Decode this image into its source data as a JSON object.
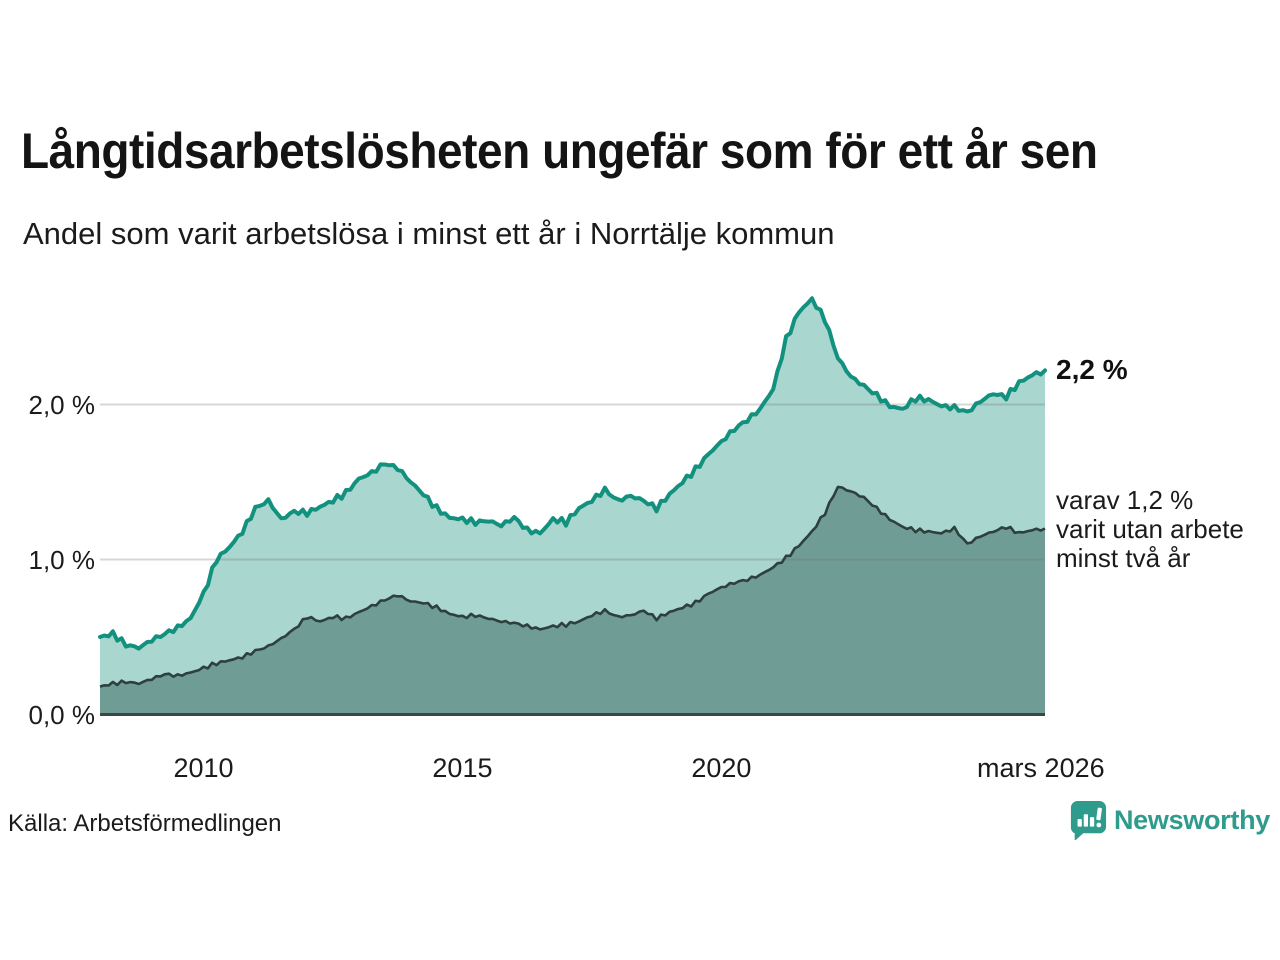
{
  "header": {
    "title": "Långtidsarbetslösheten ungefär som för ett år sen",
    "subtitle": "Andel som varit arbetslösa i minst ett år i Norrtälje kommun"
  },
  "footer": {
    "source": "Källa: Arbetsförmedlingen",
    "logo_text": "Newsworthy"
  },
  "colors": {
    "series1_line": "#12917f",
    "series1_fill": "#a9d6ce",
    "series2_line": "#2e403d",
    "series2_fill": "#6f9c95",
    "grid": "rgba(110,110,110,0.28)",
    "axis": "#3c4645",
    "logo_teal": "#2f9b8d",
    "text": "#1b1b1b"
  },
  "chart_data": {
    "type": "area",
    "title": "Långtidsarbetslösheten ungefär som för ett år sen",
    "subtitle": "Andel som varit arbetslösa i minst ett år i Norrtälje kommun",
    "xlim": [
      2008.0,
      2026.25
    ],
    "ylim": [
      0,
      2.9
    ],
    "grid": true,
    "x_start": 2008.0,
    "x_step": 0.25,
    "yticks": [
      {
        "v": 0,
        "label": "0,0 %"
      },
      {
        "v": 1,
        "label": "1,0 %"
      },
      {
        "v": 2,
        "label": "2,0 %"
      }
    ],
    "xticks": [
      {
        "x": 2010.0,
        "label": "2010"
      },
      {
        "x": 2015.0,
        "label": "2015"
      },
      {
        "x": 2020.0,
        "label": "2020"
      },
      {
        "x": 2026.17,
        "label": "mars 2026"
      }
    ],
    "annotations": {
      "end_value": "2,2 %",
      "sub_lines": [
        "varav 1,2 %",
        "varit utan arbete",
        "minst två år"
      ]
    },
    "series": [
      {
        "name": "Arbetslösa minst ett år",
        "end_value_pct": 2.2,
        "values": [
          0.5,
          0.52,
          0.45,
          0.43,
          0.48,
          0.52,
          0.56,
          0.62,
          0.78,
          1.0,
          1.08,
          1.18,
          1.33,
          1.38,
          1.26,
          1.31,
          1.3,
          1.34,
          1.38,
          1.43,
          1.52,
          1.56,
          1.62,
          1.59,
          1.5,
          1.42,
          1.33,
          1.27,
          1.26,
          1.24,
          1.25,
          1.22,
          1.27,
          1.19,
          1.17,
          1.26,
          1.24,
          1.33,
          1.38,
          1.45,
          1.38,
          1.41,
          1.38,
          1.33,
          1.42,
          1.5,
          1.58,
          1.68,
          1.76,
          1.84,
          1.9,
          1.97,
          2.1,
          2.42,
          2.6,
          2.68,
          2.55,
          2.3,
          2.18,
          2.12,
          2.06,
          1.99,
          1.97,
          2.04,
          2.03,
          1.99,
          1.98,
          1.95,
          2.02,
          2.07,
          2.05,
          2.14,
          2.19,
          2.22
        ]
      },
      {
        "name": "Varav utan arbete minst två år",
        "end_value_pct": 1.2,
        "values": [
          0.18,
          0.2,
          0.21,
          0.2,
          0.23,
          0.26,
          0.25,
          0.27,
          0.3,
          0.33,
          0.35,
          0.37,
          0.41,
          0.44,
          0.49,
          0.55,
          0.63,
          0.6,
          0.63,
          0.62,
          0.66,
          0.7,
          0.74,
          0.77,
          0.73,
          0.72,
          0.69,
          0.65,
          0.63,
          0.64,
          0.62,
          0.6,
          0.59,
          0.57,
          0.55,
          0.57,
          0.58,
          0.6,
          0.64,
          0.67,
          0.63,
          0.64,
          0.67,
          0.62,
          0.66,
          0.69,
          0.72,
          0.78,
          0.82,
          0.85,
          0.87,
          0.9,
          0.95,
          1.01,
          1.09,
          1.18,
          1.3,
          1.47,
          1.44,
          1.4,
          1.33,
          1.26,
          1.21,
          1.19,
          1.18,
          1.17,
          1.2,
          1.1,
          1.15,
          1.18,
          1.21,
          1.17,
          1.19,
          1.2
        ]
      }
    ]
  }
}
